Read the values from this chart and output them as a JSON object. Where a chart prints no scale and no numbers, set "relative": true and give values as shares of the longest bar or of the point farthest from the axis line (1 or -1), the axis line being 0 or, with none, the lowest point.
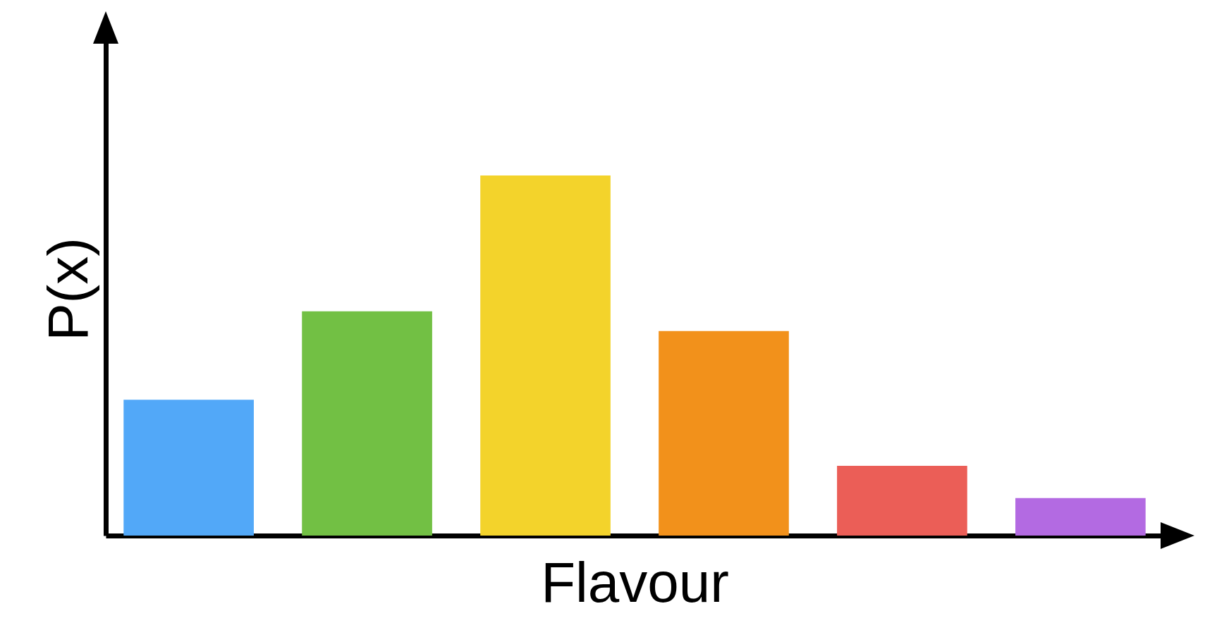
{
  "chart_data": {
    "type": "bar",
    "xlabel": "Flavour",
    "ylabel": "P(x)",
    "relative": true,
    "categories": [
      null,
      null,
      null,
      null,
      null,
      null
    ],
    "values": [
      0.377,
      0.623,
      1,
      0.568,
      0.194,
      0.104
    ],
    "colors": [
      "#52a8f8",
      "#72c044",
      "#f3d32b",
      "#f2911b",
      "#eb5e57",
      "#b36ae2"
    ],
    "grid": false,
    "legend": false
  }
}
